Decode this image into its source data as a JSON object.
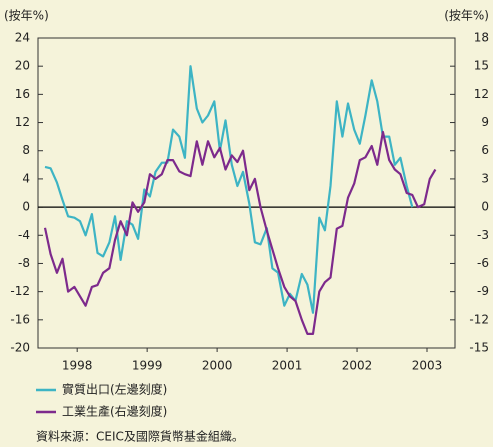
{
  "chart_data": {
    "type": "line",
    "y_axis_label": "(按年%)",
    "y2_axis_label": "(按年%)",
    "x": [
      1998.04,
      1998.12,
      1998.21,
      1998.29,
      1998.37,
      1998.46,
      1998.54,
      1998.62,
      1998.71,
      1998.79,
      1998.87,
      1998.96,
      1999.04,
      1999.12,
      1999.21,
      1999.29,
      1999.37,
      1999.46,
      1999.54,
      1999.62,
      1999.71,
      1999.79,
      1999.87,
      1999.96,
      2000.04,
      2000.12,
      2000.21,
      2000.29,
      2000.37,
      2000.46,
      2000.54,
      2000.62,
      2000.71,
      2000.79,
      2000.87,
      2000.96,
      2001.04,
      2001.12,
      2001.21,
      2001.29,
      2001.37,
      2001.46,
      2001.54,
      2001.62,
      2001.71,
      2001.79,
      2001.87,
      2001.96,
      2002.04,
      2002.12,
      2002.21,
      2002.29,
      2002.37,
      2002.46,
      2002.54,
      2002.62,
      2002.71,
      2002.79,
      2002.87,
      2002.96,
      2003.04,
      2003.12,
      2003.21,
      2003.29,
      2003.37,
      2003.46,
      2003.54,
      2003.62
    ],
    "series": [
      {
        "name": "實質出口(左邊刻度)",
        "color": "#3db4c4",
        "axis": "y",
        "values": [
          5.7,
          5.5,
          3.5,
          1,
          -1.3,
          -1.5,
          -2,
          -4,
          -1,
          -6.5,
          -7,
          -5,
          -1.3,
          -7.5,
          -2,
          -2.5,
          -4.5,
          2.5,
          1.5,
          5,
          6.3,
          6.3,
          11,
          10,
          7,
          20,
          14,
          12,
          13,
          15,
          8,
          12.3,
          6,
          3,
          5,
          0.5,
          -5,
          -5.3,
          -3,
          -8.7,
          -9.3,
          -14,
          -12.3,
          -13.3,
          -9.5,
          -11,
          -15,
          -1.5,
          -3.3,
          3,
          15,
          10,
          14.7,
          11,
          9,
          13,
          18,
          15,
          10,
          10,
          6,
          7,
          3,
          0,
          null,
          null,
          null,
          null
        ]
      },
      {
        "name": "工業生產(右邊刻度)",
        "color": "#7d2a8c",
        "axis": "y2",
        "values": [
          -2.2,
          -5,
          -7,
          -5.5,
          -9,
          -8.5,
          -9.5,
          -10.5,
          -8.5,
          -8.3,
          -7,
          -6.5,
          -3.5,
          -1.5,
          -3,
          0.5,
          -0.5,
          0.5,
          3.5,
          3,
          3.5,
          5,
          5,
          3.8,
          3.5,
          3.3,
          7,
          4.5,
          7,
          5.3,
          6.3,
          4,
          5.5,
          4.8,
          6,
          1.8,
          3,
          0,
          -2.5,
          -4.5,
          -6.5,
          -8.5,
          -9.5,
          -10,
          -12,
          -13.5,
          -13.5,
          -9,
          -8,
          -7.5,
          -2.3,
          -2,
          1,
          2.5,
          5,
          5.3,
          6.5,
          4.5,
          8,
          5,
          4,
          3.5,
          1.5,
          1.3,
          0,
          0.3,
          3,
          4
        ]
      }
    ],
    "xlim": [
      1997.94,
      2003.9
    ],
    "xticks": [
      {
        "value": 1998.5,
        "label": "1998"
      },
      {
        "value": 1999.5,
        "label": "1999"
      },
      {
        "value": 2000.5,
        "label": "2000"
      },
      {
        "value": 2001.5,
        "label": "2001"
      },
      {
        "value": 2002.5,
        "label": "2002"
      },
      {
        "value": 2003.5,
        "label": "2003"
      }
    ],
    "ylim": [
      -20,
      24
    ],
    "yticks": [
      -20,
      -16,
      -12,
      -8,
      -4,
      0,
      4,
      8,
      12,
      16,
      20,
      24
    ],
    "y2lim": [
      -15,
      18
    ],
    "y2ticks": [
      -15,
      -12,
      -9,
      -6,
      -3,
      0,
      3,
      6,
      9,
      12,
      15,
      18
    ],
    "source": "資料來源：CEIC及國際貨幣基金組織。"
  }
}
